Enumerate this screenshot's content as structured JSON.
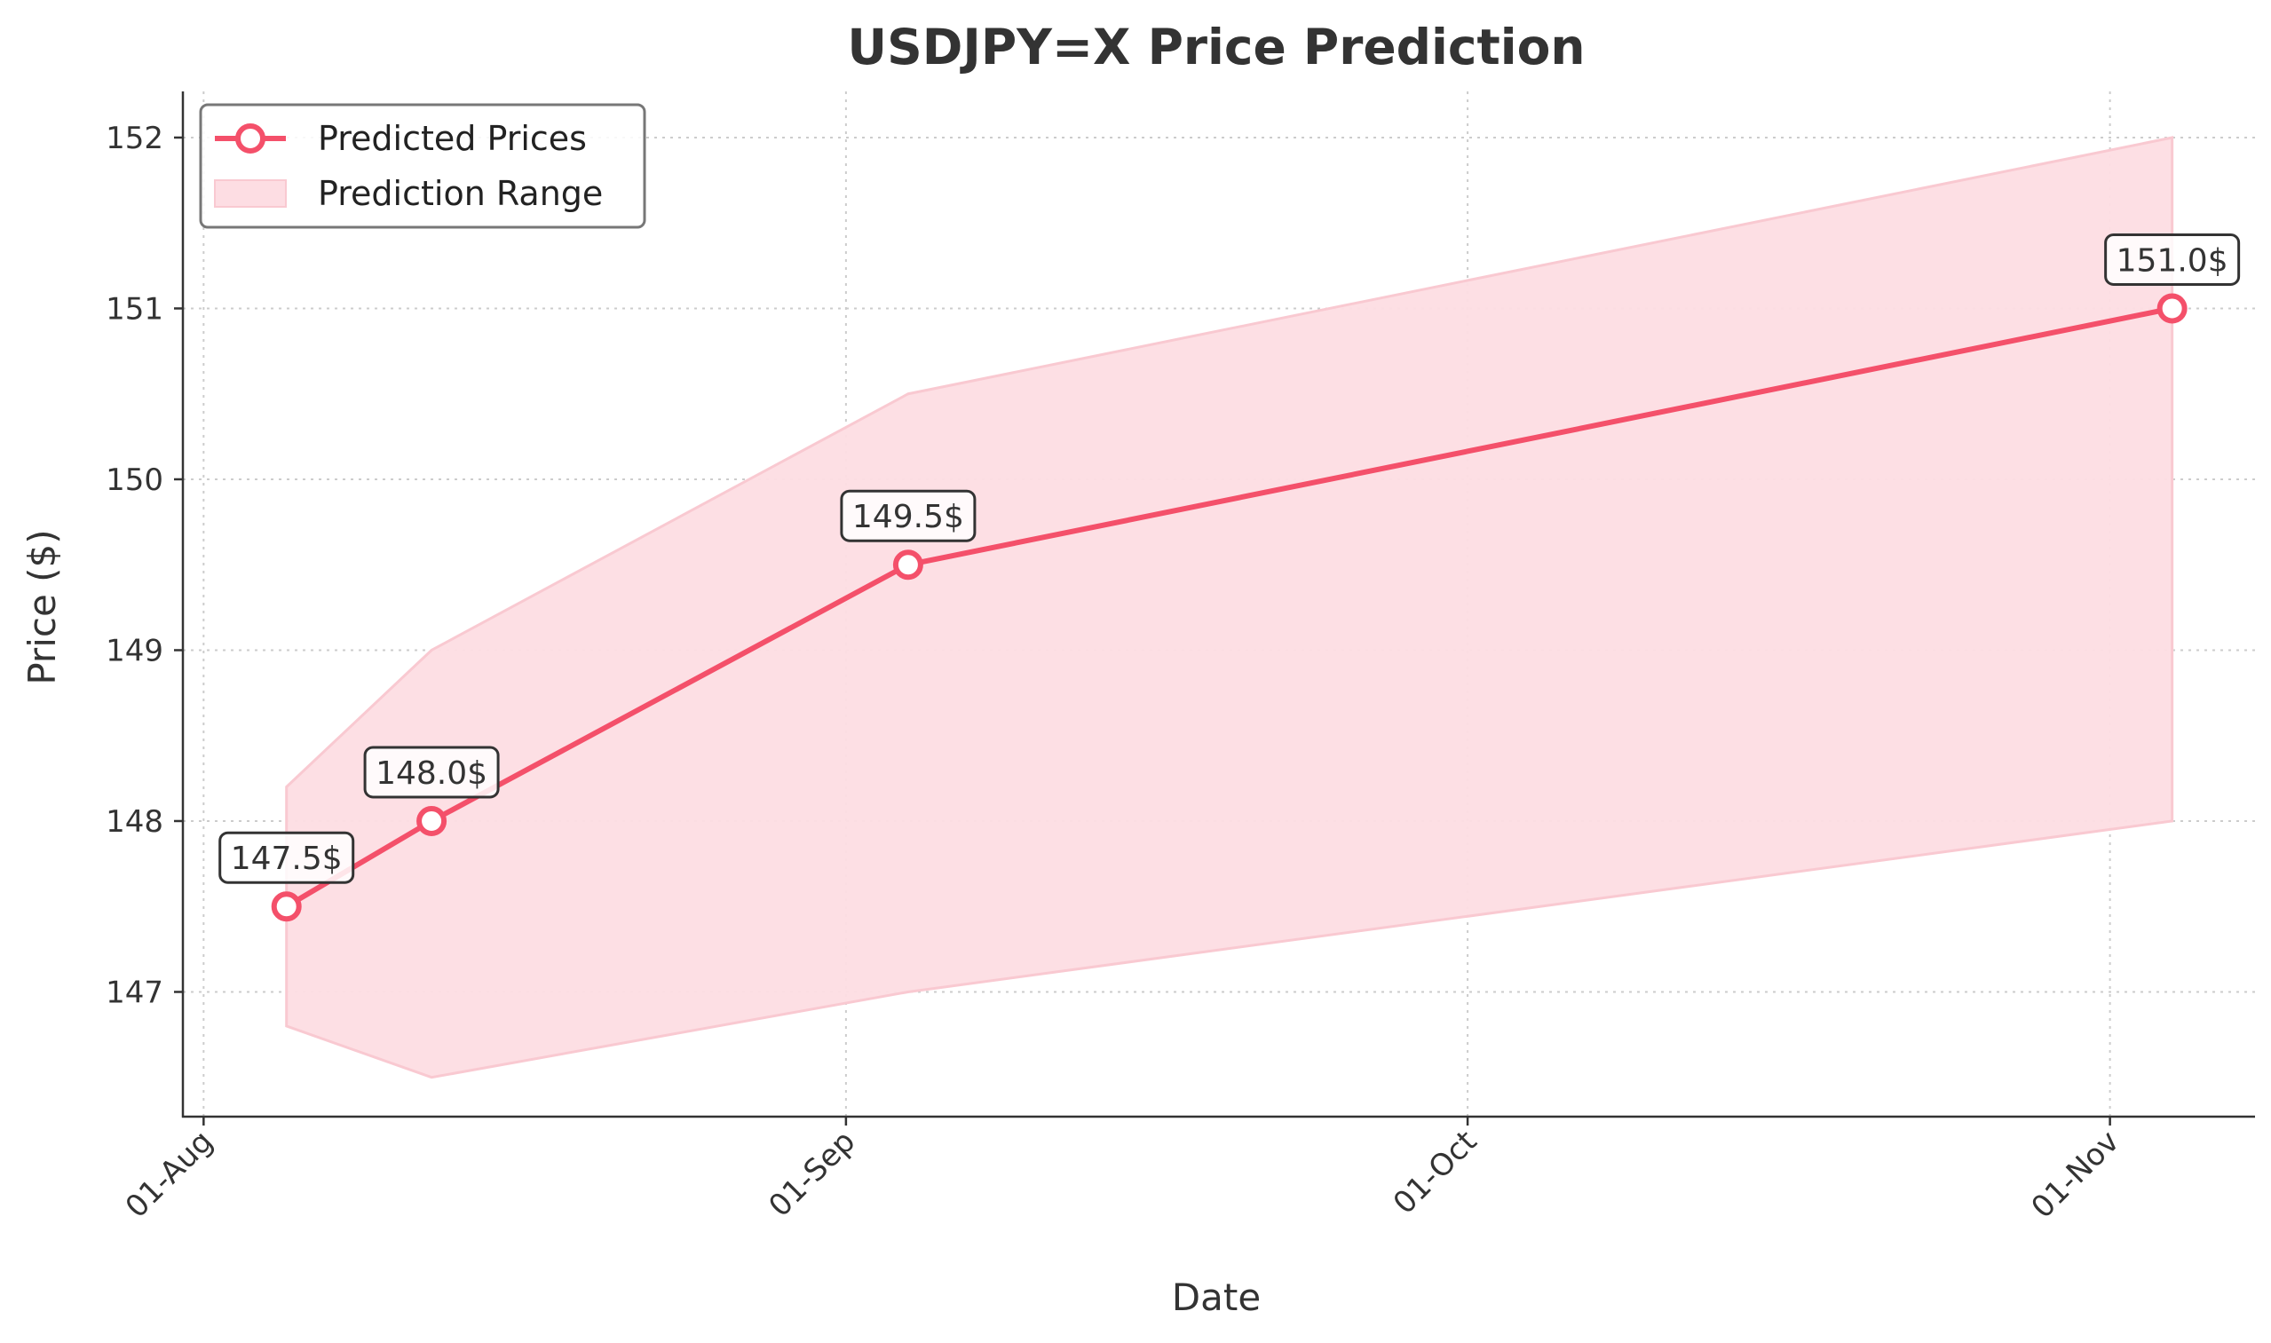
{
  "chart_data": {
    "type": "line",
    "title": "USDJPY=X Price Prediction",
    "xlabel": "Date",
    "ylabel": "Price ($)",
    "x_ticks": [
      {
        "date": "2024-08-01",
        "label": "01-Aug"
      },
      {
        "date": "2024-09-01",
        "label": "01-Sep"
      },
      {
        "date": "2024-10-01",
        "label": "01-Oct"
      },
      {
        "date": "2024-11-01",
        "label": "01-Nov"
      }
    ],
    "y_ticks": [
      147,
      148,
      149,
      150,
      151,
      152
    ],
    "xlim": [
      "2024-07-31",
      "2024-11-08"
    ],
    "ylim": [
      146.27,
      152.27
    ],
    "grid": true,
    "legend_position": "upper-left",
    "series": [
      {
        "name": "Predicted Prices",
        "color": "#F4506A",
        "points": [
          {
            "x": "2024-08-05",
            "y": 147.5,
            "label": "147.5$"
          },
          {
            "x": "2024-08-12",
            "y": 148.0,
            "label": "148.0$"
          },
          {
            "x": "2024-09-04",
            "y": 149.5,
            "label": "149.5$"
          },
          {
            "x": "2024-11-04",
            "y": 151.0,
            "label": "151.0$"
          }
        ]
      }
    ],
    "range": {
      "name": "Prediction Range",
      "color": "#FDDDE3",
      "edge_color": "#F9C9D1",
      "points": [
        {
          "x": "2024-08-05",
          "low": 146.8,
          "high": 148.2
        },
        {
          "x": "2024-08-12",
          "low": 146.5,
          "high": 149.0
        },
        {
          "x": "2024-09-04",
          "low": 147.0,
          "high": 150.5
        },
        {
          "x": "2024-11-04",
          "low": 148.0,
          "high": 152.0
        }
      ]
    }
  }
}
